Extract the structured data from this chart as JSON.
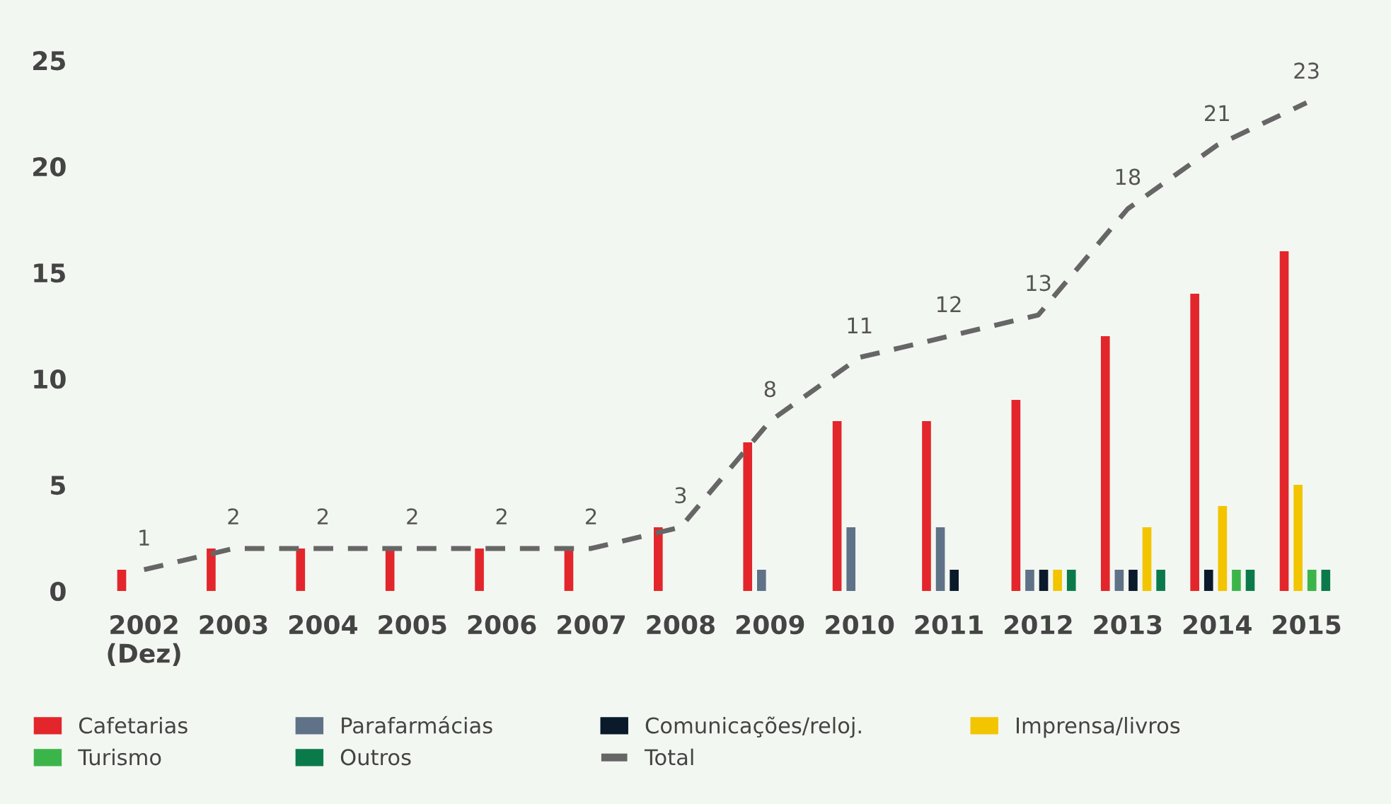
{
  "chart_data": {
    "type": "bar",
    "categories": [
      "2002\n(Dez)",
      "2003",
      "2004",
      "2005",
      "2006",
      "2007",
      "2008",
      "2009",
      "2010",
      "2011",
      "2012",
      "2013",
      "2014",
      "2015"
    ],
    "series": [
      {
        "name": "Cafetarias",
        "color": "#e3262b",
        "values": [
          1,
          2,
          2,
          2,
          2,
          2,
          3,
          7,
          8,
          8,
          9,
          12,
          14,
          16
        ]
      },
      {
        "name": "Parafarmácias",
        "color": "#5f7287",
        "values": [
          null,
          null,
          null,
          null,
          null,
          null,
          null,
          1,
          3,
          3,
          1,
          1,
          null,
          null
        ]
      },
      {
        "name": "Comunicações/reloj.",
        "color": "#0a1a2b",
        "values": [
          null,
          null,
          null,
          null,
          null,
          null,
          null,
          null,
          null,
          1,
          1,
          1,
          1,
          null
        ]
      },
      {
        "name": "Imprensa/livros",
        "color": "#f2c500",
        "values": [
          null,
          null,
          null,
          null,
          null,
          null,
          null,
          null,
          null,
          null,
          1,
          3,
          4,
          5
        ]
      },
      {
        "name": "Turismo",
        "color": "#3bb54a",
        "values": [
          null,
          null,
          null,
          null,
          null,
          null,
          null,
          null,
          null,
          null,
          null,
          null,
          1,
          1
        ]
      },
      {
        "name": "Outros",
        "color": "#0b7a4b",
        "values": [
          null,
          null,
          null,
          null,
          null,
          null,
          null,
          null,
          null,
          null,
          1,
          1,
          1,
          1
        ]
      },
      {
        "name": "Total",
        "type": "line",
        "color": "#666666",
        "line_style": "dashed",
        "values": [
          1,
          2,
          2,
          2,
          2,
          2,
          3,
          8,
          11,
          12,
          13,
          18,
          21,
          23
        ],
        "value_labels": [
          "1",
          "2",
          "2",
          "2",
          "2",
          "2",
          "3",
          "8",
          "11",
          "12",
          "13",
          "18",
          "21",
          "23"
        ]
      }
    ],
    "ylim": [
      0,
      25
    ],
    "yticks": [
      0,
      5,
      10,
      15,
      20,
      25
    ],
    "grid": false,
    "legend": "bottom"
  }
}
